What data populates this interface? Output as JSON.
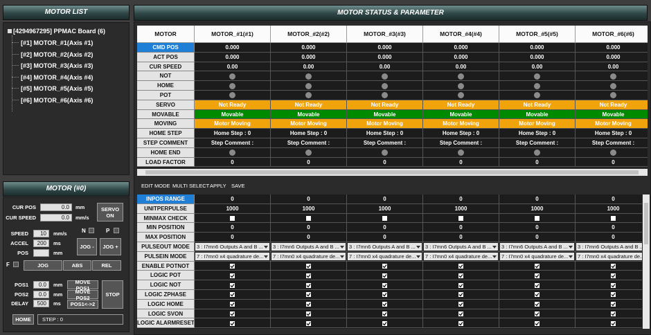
{
  "motor_list": {
    "title": "MOTOR LIST",
    "root": "[4294967295] PPMAC Board (6)",
    "items": [
      "[#1] MOTOR_#1(Axis #1)",
      "[#2] MOTOR_#2(Axis #2)",
      "[#3] MOTOR_#3(Axis #3)",
      "[#4] MOTOR_#4(Axis #4)",
      "[#5] MOTOR_#5(Axis #5)",
      "[#6] MOTOR_#6(Axis #6)"
    ]
  },
  "motor_panel": {
    "title": "MOTOR (#0)",
    "cur_pos": {
      "label": "CUR POS",
      "value": "0.0",
      "unit": "mm"
    },
    "cur_speed": {
      "label": "CUR SPEED",
      "value": "0.0",
      "unit": "mm/s"
    },
    "servo_button": "SERVO ON",
    "speed": {
      "label": "SPEED",
      "value": "10",
      "unit": "mm/s"
    },
    "accel": {
      "label": "ACCEL",
      "value": "200",
      "unit": "ms"
    },
    "pos": {
      "label": "POS",
      "unit": "mm"
    },
    "n_label": "N",
    "p_label": "P",
    "jog_minus": "JOG -",
    "jog_plus": "JOG +",
    "f_label": "F",
    "mode_buttons": [
      "JOG",
      "ABS",
      "REL"
    ],
    "pos1": {
      "label": "POS1",
      "value": "0.0",
      "unit": "mm"
    },
    "pos2": {
      "label": "POS2",
      "value": "0.0",
      "unit": "mm"
    },
    "delay": {
      "label": "DELAY",
      "value": "500",
      "unit": "ms"
    },
    "move_buttons": [
      "MOVE POS1",
      "MOVE POS2",
      "POS1<->2"
    ],
    "stop_button": "STOP",
    "home_button": "HOME",
    "step_status": "STEP : 0"
  },
  "status": {
    "title": "MOTOR STATUS & PARAMETER",
    "columns": [
      "MOTOR",
      "MOTOR_#1(#1)",
      "MOTOR_#2(#2)",
      "MOTOR_#3(#3)",
      "MOTOR_#4(#4)",
      "MOTOR_#5(#5)",
      "MOTOR_#6(#6)"
    ],
    "rows": [
      {
        "label": "CMD POS",
        "selected": true,
        "values": [
          "0.000",
          "0.000",
          "0.000",
          "0.000",
          "0.000",
          "0.000"
        ]
      },
      {
        "label": "ACT POS",
        "values": [
          "0.000",
          "0.000",
          "0.000",
          "0.000",
          "0.000",
          "0.000"
        ]
      },
      {
        "label": "CUR SPEED",
        "values": [
          "0.00",
          "0.00",
          "0.00",
          "0.00",
          "0.00",
          "0.00"
        ]
      },
      {
        "label": "NOT"
      },
      {
        "label": "HOME"
      },
      {
        "label": "POT"
      },
      {
        "label": "SERVO",
        "color": "#f0a30a",
        "values": [
          "Not Ready",
          "Not Ready",
          "Not Ready",
          "Not Ready",
          "Not Ready",
          "Not Ready"
        ]
      },
      {
        "label": "MOVABLE",
        "color": "#008a00",
        "values": [
          "Movable",
          "Movable",
          "Movable",
          "Movable",
          "Movable",
          "Movable"
        ]
      },
      {
        "label": "MOVING",
        "color": "#f0a30a",
        "values": [
          "Motor Moving",
          "Motor Moving",
          "Motor Moving",
          "Motor Moving",
          "Motor Moving",
          "Motor Moving"
        ]
      },
      {
        "label": "HOME STEP",
        "values": [
          "Home Step : 0",
          "Home Step : 0",
          "Home Step : 0",
          "Home Step : 0",
          "Home Step : 0",
          "Home Step : 0"
        ]
      },
      {
        "label": "STEP COMMENT",
        "values": [
          "Step Comment :",
          "Step Comment :",
          "Step Comment :",
          "Step Comment :",
          "Step Comment :",
          "Step Comment :"
        ]
      },
      {
        "label": "HOME END"
      },
      {
        "label": "LOAD FACTOR",
        "values": [
          "0",
          "0",
          "0",
          "0",
          "0",
          "0"
        ]
      }
    ]
  },
  "toolbar": [
    "EDIT MODE",
    "MULTI SELECT",
    "APPLY",
    "SAVE"
  ],
  "parameters": {
    "rows": [
      {
        "label": "INPOS RANGE",
        "selected": true,
        "values": [
          "0",
          "0",
          "0",
          "0",
          "0",
          "0"
        ]
      },
      {
        "label": "UNITPERPULSE",
        "values": [
          "1000",
          "1000",
          "1000",
          "1000",
          "1000",
          "1000"
        ]
      },
      {
        "label": "MINMAX CHECK",
        "checked": [
          false,
          false,
          false,
          false,
          false,
          false
        ]
      },
      {
        "label": "MIN POSITION",
        "values": [
          "0",
          "0",
          "0",
          "0",
          "0",
          "0"
        ]
      },
      {
        "label": "MAX POSITION",
        "values": [
          "0",
          "0",
          "0",
          "0",
          "0",
          "0"
        ]
      },
      {
        "label": "PULSEOUT MODE",
        "dropdown": true,
        "values": [
          "3 : I7mn6 Outputs A and B ...",
          "3 : I7mn6 Outputs A and B ...",
          "3 : I7mn6 Outputs A and B ...",
          "3 : I7mn6 Outputs A and B ...",
          "3 : I7mn6 Outputs A and B ...",
          "3 : I7mn6 Outputs A and B ..."
        ]
      },
      {
        "label": "PULSEIN MODE",
        "dropdown": true,
        "values": [
          "7 : I7mn0 x4 quadrature de...",
          "7 : I7mn0 x4 quadrature de...",
          "7 : I7mn0 x4 quadrature de...",
          "7 : I7mn0 x4 quadrature de...",
          "7 : I7mn0 x4 quadrature de...",
          "7 : I7mn0 x4 quadrature de..."
        ]
      },
      {
        "label": "ENABLE POTNOT",
        "checked": [
          true,
          true,
          true,
          true,
          true,
          true
        ]
      },
      {
        "label": "LOGIC POT",
        "checked": [
          true,
          true,
          true,
          true,
          true,
          true
        ]
      },
      {
        "label": "LOGIC NOT",
        "checked": [
          true,
          true,
          true,
          true,
          true,
          true
        ]
      },
      {
        "label": "LOGIC ZPHASE",
        "checked": [
          true,
          true,
          true,
          true,
          true,
          true
        ]
      },
      {
        "label": "LOGIC HOME",
        "checked": [
          true,
          true,
          true,
          true,
          true,
          true
        ]
      },
      {
        "label": "LOGIC SVON",
        "checked": [
          true,
          true,
          true,
          true,
          true,
          true
        ]
      },
      {
        "label": "LOGIC ALARMRESET",
        "checked": [
          true,
          true,
          true,
          true,
          true,
          true
        ]
      }
    ]
  }
}
